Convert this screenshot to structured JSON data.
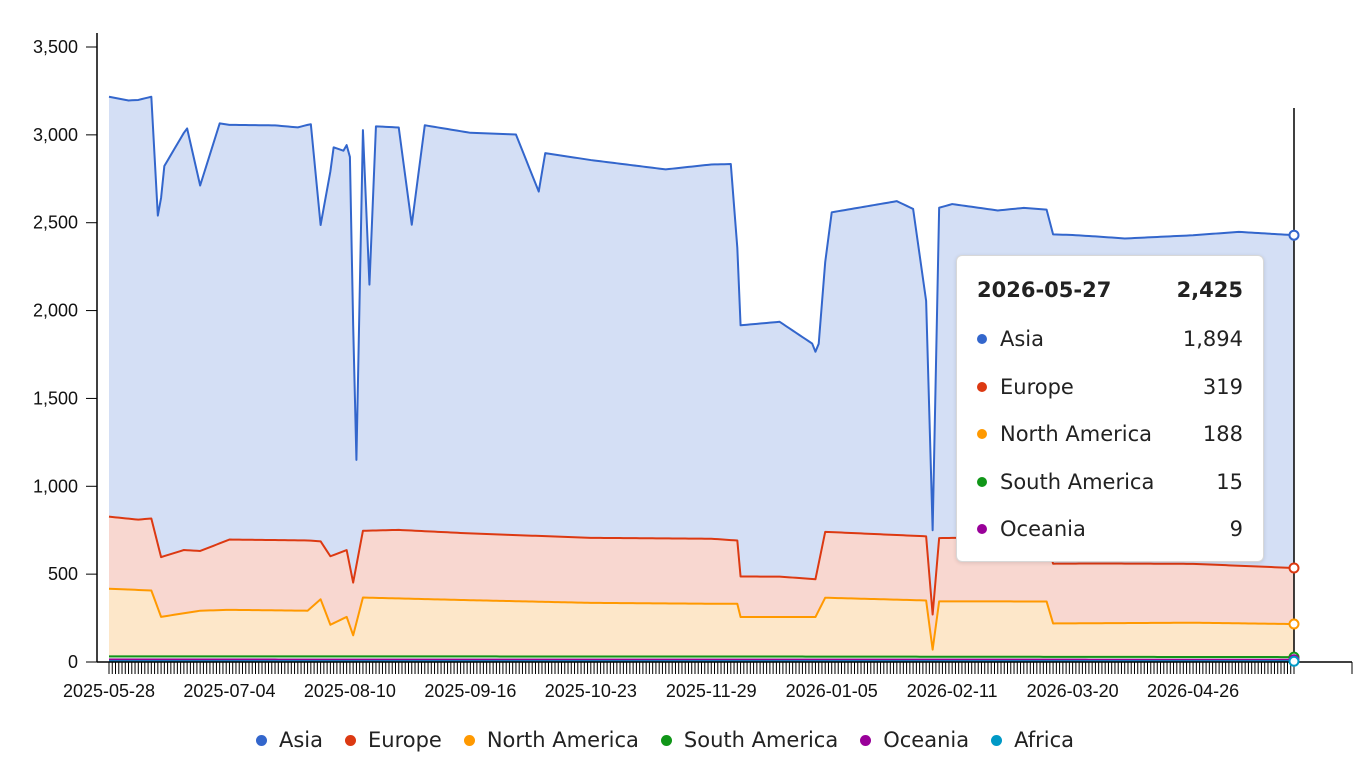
{
  "chart_data": {
    "type": "area",
    "stacked": true,
    "y_ticks": [
      "0",
      "500",
      "1,000",
      "1,500",
      "2,000",
      "2,500",
      "3,000",
      "3,500"
    ],
    "y_tick_values": [
      0,
      500,
      1000,
      1500,
      2000,
      2500,
      3000,
      3500
    ],
    "ylim": [
      0,
      3500
    ],
    "x_start": "2025-05-28",
    "x_end": "2026-05-27",
    "x_ticks": [
      "2025-05-28",
      "2025-07-04",
      "2025-08-10",
      "2025-09-16",
      "2025-10-23",
      "2025-11-29",
      "2026-01-05",
      "2026-02-11",
      "2026-03-20",
      "2026-04-26"
    ],
    "grid": false,
    "legend_position": "bottom",
    "series": [
      {
        "name": "Asia",
        "color": "#3366cc",
        "fill": "#d4dff5",
        "points": [
          [
            "2025-05-28",
            2390
          ],
          [
            "2025-06-03",
            2380
          ],
          [
            "2025-06-10",
            2400
          ],
          [
            "2025-06-12",
            1870
          ],
          [
            "2025-06-14",
            2220
          ],
          [
            "2025-06-21",
            2400
          ],
          [
            "2025-06-25",
            2080
          ],
          [
            "2025-07-01",
            2390
          ],
          [
            "2025-07-04",
            2360
          ],
          [
            "2025-07-18",
            2360
          ],
          [
            "2025-07-25",
            2350
          ],
          [
            "2025-07-29",
            2370
          ],
          [
            "2025-08-01",
            1800
          ],
          [
            "2025-08-05",
            2320
          ],
          [
            "2025-08-08",
            2280
          ],
          [
            "2025-08-10",
            2330
          ],
          [
            "2025-08-12",
            600
          ],
          [
            "2025-08-14",
            2280
          ],
          [
            "2025-08-16",
            1400
          ],
          [
            "2025-08-18",
            2300
          ],
          [
            "2025-08-25",
            2290
          ],
          [
            "2025-08-29",
            1740
          ],
          [
            "2025-09-02",
            2310
          ],
          [
            "2025-09-16",
            2280
          ],
          [
            "2025-09-30",
            2280
          ],
          [
            "2025-10-07",
            1960
          ],
          [
            "2025-10-09",
            2180
          ],
          [
            "2025-10-23",
            2150
          ],
          [
            "2025-11-15",
            2100
          ],
          [
            "2025-11-29",
            2130
          ],
          [
            "2025-12-05",
            2140
          ],
          [
            "2025-12-08",
            1430
          ],
          [
            "2025-12-20",
            1450
          ],
          [
            "2025-12-30",
            1340
          ],
          [
            "2026-01-01",
            1250
          ],
          [
            "2026-01-05",
            1820
          ],
          [
            "2026-01-25",
            1900
          ],
          [
            "2026-01-30",
            1860
          ],
          [
            "2026-02-03",
            1340
          ],
          [
            "2026-02-05",
            480
          ],
          [
            "2026-02-07",
            1880
          ],
          [
            "2026-02-11",
            1900
          ],
          [
            "2026-02-25",
            1860
          ],
          [
            "2026-03-05",
            1880
          ],
          [
            "2026-03-20",
            1870
          ],
          [
            "2026-04-05",
            1850
          ],
          [
            "2026-04-26",
            1870
          ],
          [
            "2026-05-10",
            1900
          ],
          [
            "2026-05-27",
            1894
          ]
        ]
      },
      {
        "name": "Europe",
        "color": "#dc3912",
        "fill": "#f8d7d0",
        "points": [
          [
            "2025-05-28",
            410
          ],
          [
            "2025-06-06",
            400
          ],
          [
            "2025-06-10",
            410
          ],
          [
            "2025-06-13",
            340
          ],
          [
            "2025-06-20",
            360
          ],
          [
            "2025-06-25",
            340
          ],
          [
            "2025-07-04",
            400
          ],
          [
            "2025-07-28",
            400
          ],
          [
            "2025-08-01",
            330
          ],
          [
            "2025-08-04",
            390
          ],
          [
            "2025-08-09",
            380
          ],
          [
            "2025-08-11",
            300
          ],
          [
            "2025-08-14",
            380
          ],
          [
            "2025-08-25",
            390
          ],
          [
            "2025-09-16",
            380
          ],
          [
            "2025-10-23",
            370
          ],
          [
            "2025-11-29",
            370
          ],
          [
            "2025-12-07",
            360
          ],
          [
            "2025-12-08",
            230
          ],
          [
            "2025-12-20",
            230
          ],
          [
            "2025-12-31",
            215
          ],
          [
            "2026-01-03",
            375
          ],
          [
            "2026-02-03",
            365
          ],
          [
            "2026-02-05",
            200
          ],
          [
            "2026-02-07",
            360
          ],
          [
            "2026-02-25",
            365
          ],
          [
            "2026-03-12",
            355
          ],
          [
            "2026-03-14",
            340
          ],
          [
            "2026-03-28",
            340
          ],
          [
            "2026-04-26",
            335
          ],
          [
            "2026-05-27",
            319
          ]
        ]
      },
      {
        "name": "North America",
        "color": "#ff9900",
        "fill": "#fde7c9",
        "points": [
          [
            "2025-05-28",
            385
          ],
          [
            "2025-06-10",
            375
          ],
          [
            "2025-06-13",
            225
          ],
          [
            "2025-06-25",
            260
          ],
          [
            "2025-07-04",
            265
          ],
          [
            "2025-07-28",
            260
          ],
          [
            "2025-08-01",
            325
          ],
          [
            "2025-08-04",
            180
          ],
          [
            "2025-08-09",
            225
          ],
          [
            "2025-08-11",
            120
          ],
          [
            "2025-08-14",
            335
          ],
          [
            "2025-09-16",
            320
          ],
          [
            "2025-10-23",
            305
          ],
          [
            "2025-11-29",
            300
          ],
          [
            "2025-12-07",
            300
          ],
          [
            "2025-12-08",
            225
          ],
          [
            "2025-12-31",
            225
          ],
          [
            "2026-01-03",
            335
          ],
          [
            "2026-02-03",
            320
          ],
          [
            "2026-02-05",
            40
          ],
          [
            "2026-02-07",
            315
          ],
          [
            "2026-03-12",
            315
          ],
          [
            "2026-03-14",
            190
          ],
          [
            "2026-04-26",
            195
          ],
          [
            "2026-05-27",
            188
          ]
        ]
      },
      {
        "name": "South America",
        "color": "#109618",
        "fill": "#d9efd9",
        "points": [
          [
            "2025-05-28",
            18
          ],
          [
            "2025-11-29",
            18
          ],
          [
            "2026-05-27",
            15
          ]
        ]
      },
      {
        "name": "Oceania",
        "color": "#990099",
        "fill": "#ecd6ec",
        "points": [
          [
            "2025-05-28",
            10
          ],
          [
            "2026-05-27",
            9
          ]
        ]
      },
      {
        "name": "Africa",
        "color": "#0099c6",
        "fill": "#d3edf6",
        "points": [
          [
            "2025-05-28",
            4
          ],
          [
            "2026-05-27",
            4
          ]
        ]
      }
    ]
  },
  "tooltip": {
    "date": "2026-05-27",
    "total": "2,425",
    "rows": [
      {
        "name": "Asia",
        "value": "1,894",
        "color": "#3366cc"
      },
      {
        "name": "Europe",
        "value": "319",
        "color": "#dc3912"
      },
      {
        "name": "North America",
        "value": "188",
        "color": "#ff9900"
      },
      {
        "name": "South America",
        "value": "15",
        "color": "#109618"
      },
      {
        "name": "Oceania",
        "value": "9",
        "color": "#990099"
      }
    ]
  },
  "legend": [
    {
      "name": "Asia",
      "color": "#3366cc"
    },
    {
      "name": "Europe",
      "color": "#dc3912"
    },
    {
      "name": "North America",
      "color": "#ff9900"
    },
    {
      "name": "South America",
      "color": "#109618"
    },
    {
      "name": "Oceania",
      "color": "#990099"
    },
    {
      "name": "Africa",
      "color": "#0099c6"
    }
  ]
}
